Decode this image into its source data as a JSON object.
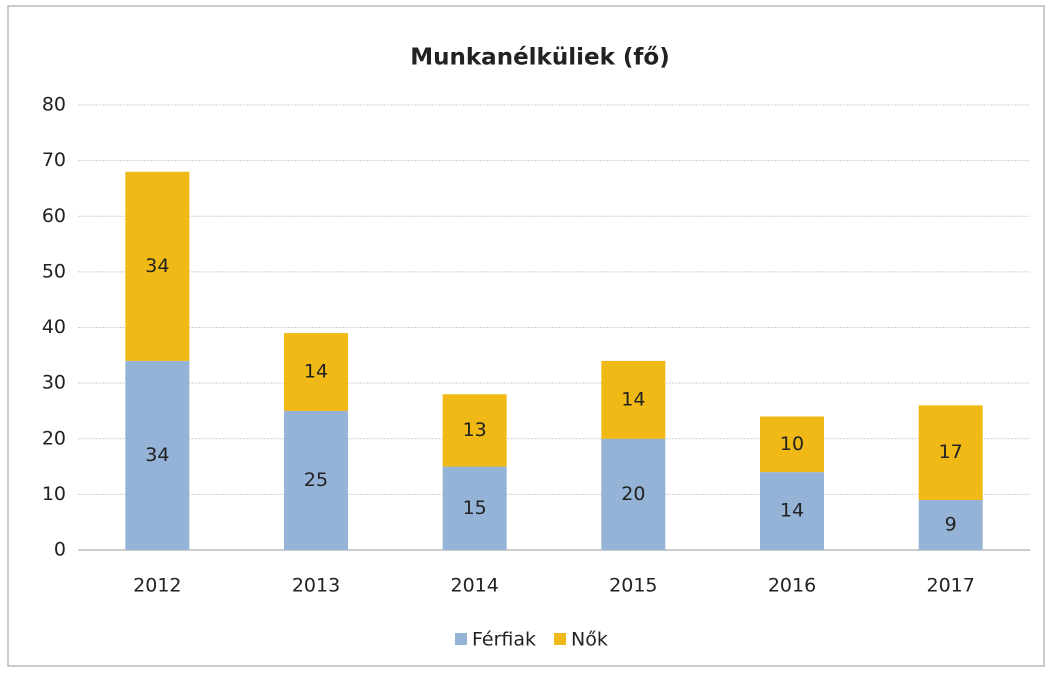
{
  "chart_data": {
    "type": "bar",
    "stacked": true,
    "title": "Munkanélküliek (fő)",
    "categories": [
      "2012",
      "2013",
      "2014",
      "2015",
      "2016",
      "2017"
    ],
    "series": [
      {
        "name": "Férfiak",
        "color": "#95b3d7",
        "values": [
          34,
          25,
          15,
          20,
          14,
          9
        ]
      },
      {
        "name": "Nők",
        "color": "#f0b915",
        "values": [
          34,
          14,
          13,
          14,
          10,
          17
        ]
      }
    ],
    "ylim": [
      0,
      80
    ],
    "yticks": [
      0,
      10,
      20,
      30,
      40,
      50,
      60,
      70,
      80
    ],
    "grid": true,
    "legend": "bottom",
    "data_labels": true
  }
}
